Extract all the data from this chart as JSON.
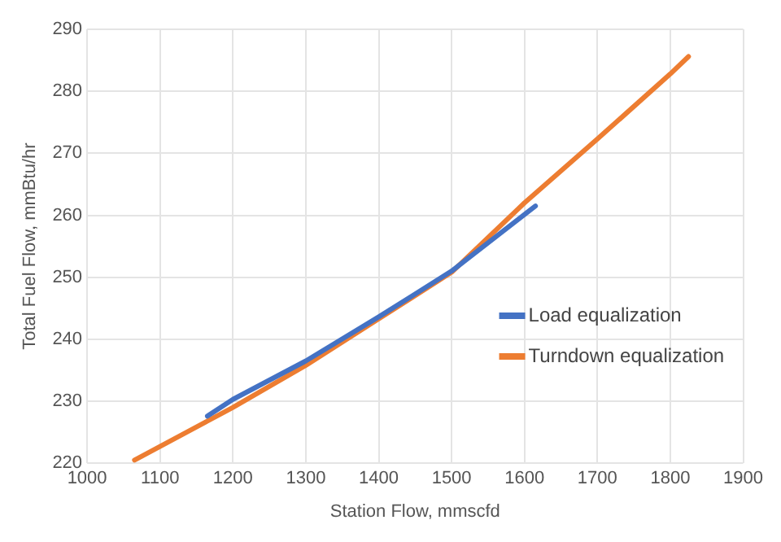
{
  "chart_data": {
    "type": "line",
    "xlabel": "Station Flow, mmscfd",
    "ylabel": "Total Fuel Flow, mmBtu/hr",
    "xlim": [
      1000,
      1900
    ],
    "xticks": [
      1000,
      1100,
      1200,
      1300,
      1400,
      1500,
      1600,
      1700,
      1800,
      1900
    ],
    "ylim": [
      220,
      290
    ],
    "yticks": [
      220,
      230,
      240,
      250,
      260,
      270,
      280,
      290
    ],
    "grid": true,
    "legend": "right",
    "marker": "none",
    "series": [
      {
        "name": "Load equalization",
        "color": "#4472c4",
        "x": [
          1165,
          1200,
          1300,
          1400,
          1500,
          1615
        ],
        "values": [
          227.6,
          230.3,
          236.5,
          243.6,
          251,
          261.5
        ]
      },
      {
        "name": "Turndown equalization",
        "color": "#ed7d31",
        "x": [
          1065,
          1200,
          1300,
          1400,
          1500,
          1600,
          1700,
          1800,
          1825
        ],
        "values": [
          220.5,
          229,
          235.8,
          243.3,
          250.8,
          262,
          272.3,
          282.8,
          285.6
        ]
      }
    ]
  }
}
